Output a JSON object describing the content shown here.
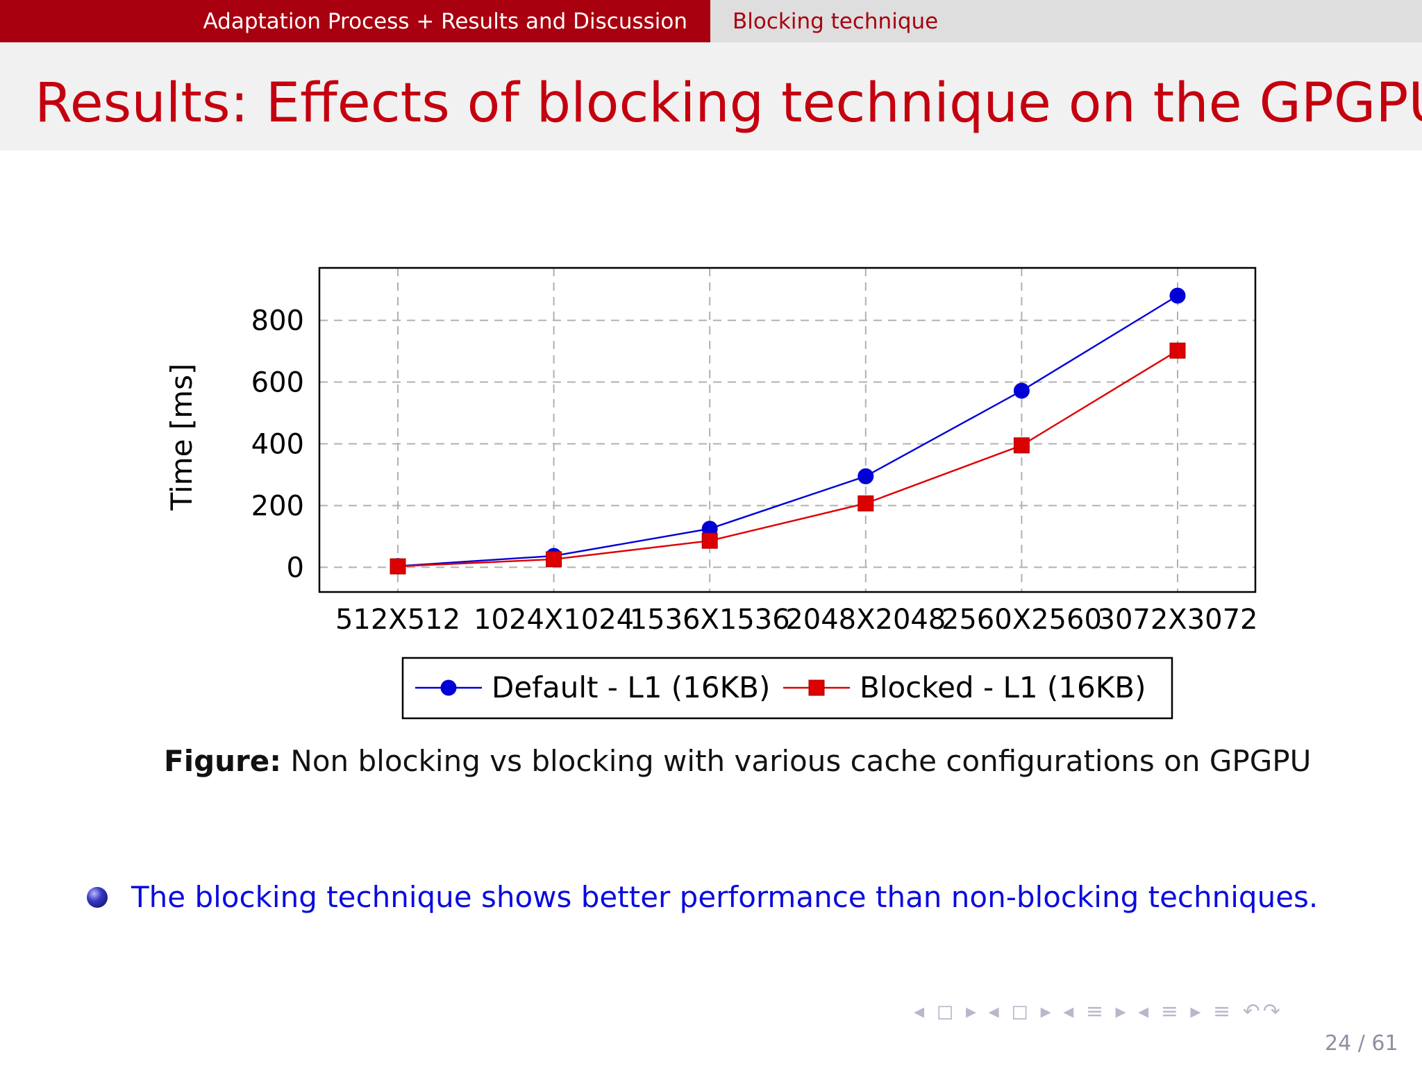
{
  "header": {
    "section": "Adaptation Process + Results and Discussion",
    "subsection": "Blocking technique"
  },
  "slide_title": "Results: Effects of blocking technique on the GPGPU",
  "caption": {
    "label": "Figure:",
    "text": "Non blocking vs blocking with various cache configurations on GPGPU"
  },
  "bullet": "The blocking technique shows better performance than non-blocking techniques.",
  "footer": {
    "nav_icons": "◂ ◻ ▸ ◂ ◻ ▸ ◂ ≡ ▸ ◂ ≡ ▸ ≡ ↶↷",
    "page": "24 / 61"
  },
  "colors": {
    "series_default": "#0000d6",
    "series_blocked": "#dd0000",
    "header_red": "#a8000e",
    "title_red": "#c4000f"
  },
  "chart_data": {
    "type": "line",
    "categories": [
      "512X512",
      "1024X1024",
      "1536X1536",
      "2048X2048",
      "2560X2560",
      "3072X3072"
    ],
    "ylabel": "Time [ms]",
    "ylim": [
      -80,
      970
    ],
    "yticks": [
      0,
      200,
      400,
      600,
      800
    ],
    "grid": true,
    "legend": "bottom-center",
    "series": [
      {
        "name": "Default - L1 (16KB)",
        "marker": "circle",
        "values": [
          4,
          37,
          125,
          295,
          572,
          880
        ]
      },
      {
        "name": "Blocked - L1 (16KB)",
        "marker": "square",
        "values": [
          3,
          26,
          86,
          207,
          395,
          702
        ]
      }
    ]
  }
}
